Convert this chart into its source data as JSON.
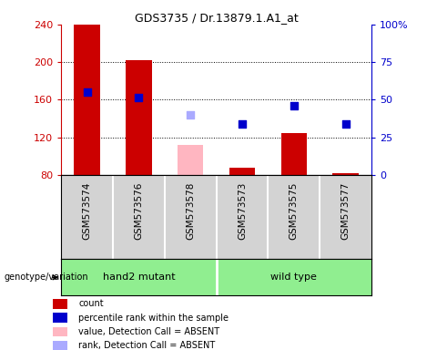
{
  "title": "GDS3735 / Dr.13879.1.A1_at",
  "samples": [
    "GSM573574",
    "GSM573576",
    "GSM573578",
    "GSM573573",
    "GSM573575",
    "GSM573577"
  ],
  "bar_values": [
    240,
    202,
    null,
    88,
    125,
    82
  ],
  "bar_color": "#cc0000",
  "absent_bar_values": [
    null,
    null,
    112,
    null,
    null,
    null
  ],
  "absent_bar_color": "#FFB6C1",
  "rank_values_present": [
    168,
    162,
    null,
    134,
    154,
    134
  ],
  "rank_color_present": "#0000cc",
  "rank_values_absent": [
    null,
    null,
    144,
    null,
    null,
    null
  ],
  "rank_color_absent": "#aaaaff",
  "ylim_left": [
    80,
    240
  ],
  "ylim_right": [
    0,
    100
  ],
  "y_ticks_left": [
    80,
    120,
    160,
    200,
    240
  ],
  "y_ticks_right": [
    0,
    25,
    50,
    75,
    100
  ],
  "y_ticks_right_labels": [
    "0",
    "25",
    "50",
    "75",
    "100%"
  ],
  "left_tick_color": "#cc0000",
  "right_tick_color": "#0000cc",
  "grid_lines": [
    120,
    160,
    200
  ],
  "sample_bg_color": "#d3d3d3",
  "group_bg_color": "#90EE90",
  "group_divider": 2,
  "group_label_1": "hand2 mutant",
  "group_label_2": "wild type",
  "genotype_label": "genotype/variation",
  "legend_items": [
    {
      "label": "count",
      "color": "#cc0000"
    },
    {
      "label": "percentile rank within the sample",
      "color": "#0000cc"
    },
    {
      "label": "value, Detection Call = ABSENT",
      "color": "#FFB6C1"
    },
    {
      "label": "rank, Detection Call = ABSENT",
      "color": "#aaaaff"
    }
  ]
}
